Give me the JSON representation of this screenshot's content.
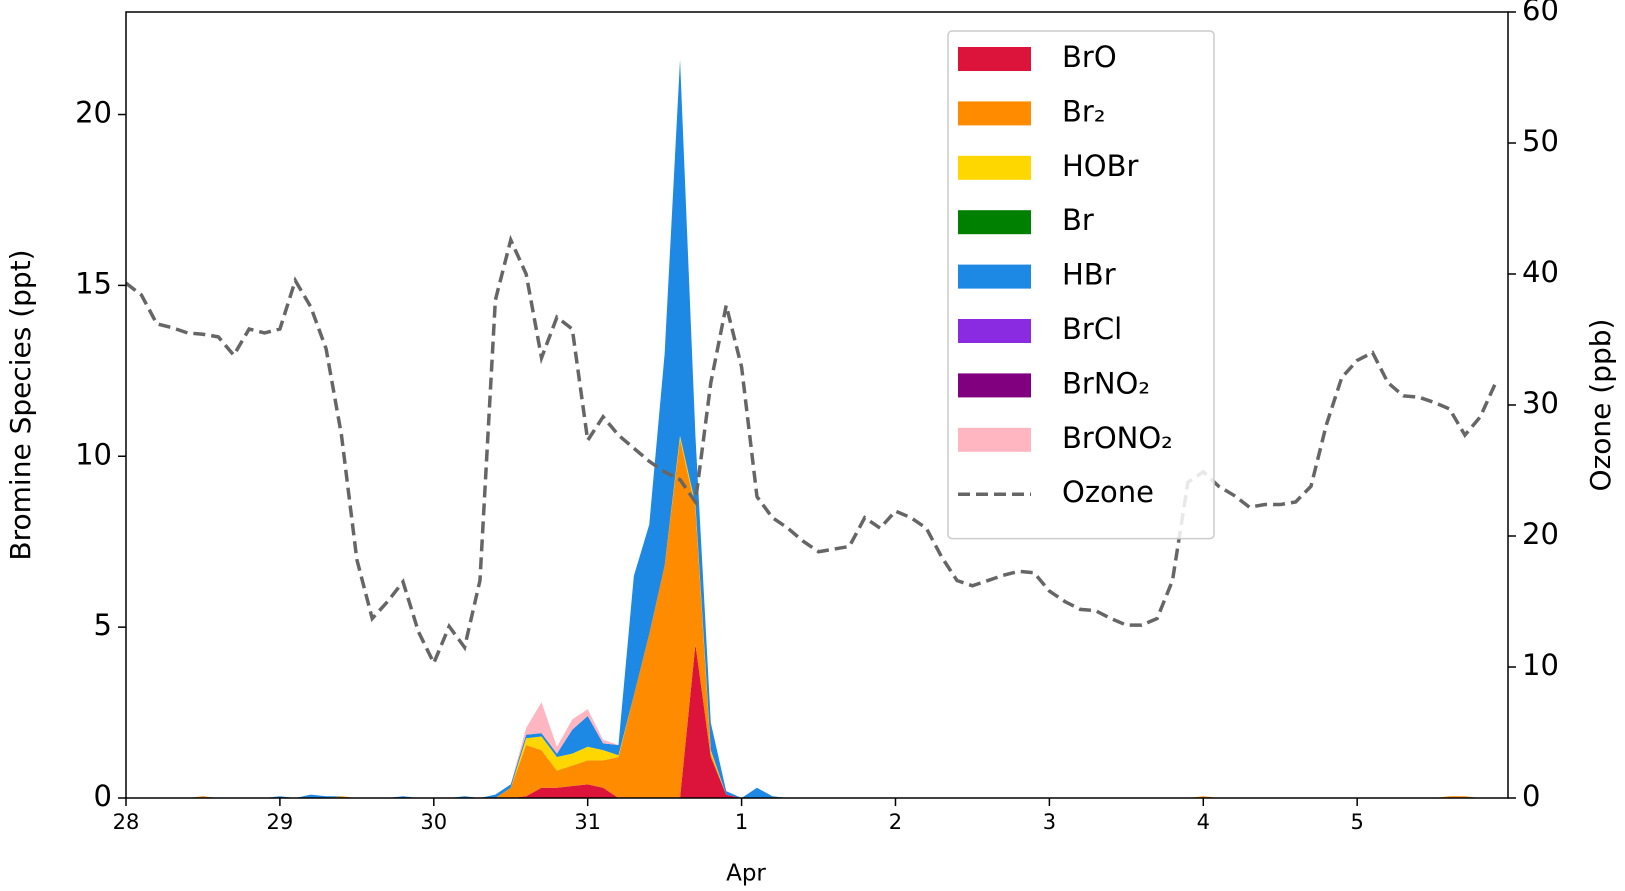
{
  "chart_data": {
    "type": "stackplot",
    "y_label": "Bromine Species (ppt)",
    "y2_label": "Ozone (ppb)",
    "x_label": "Apr",
    "x": [
      0,
      0.1,
      0.2,
      0.3,
      0.4,
      0.5,
      0.6,
      0.7,
      0.8,
      0.9,
      1,
      1.1,
      1.2,
      1.3,
      1.4,
      1.5,
      1.6,
      1.7,
      1.8,
      1.9,
      2,
      2.1,
      2.2,
      2.3,
      2.4,
      2.5,
      2.6,
      2.7,
      2.8,
      2.9,
      3,
      3.1,
      3.2,
      3.3,
      3.4,
      3.5,
      3.6,
      3.7,
      3.8,
      3.9,
      4,
      4.1,
      4.2,
      4.3,
      4.4,
      4.5,
      4.6,
      4.7,
      4.8,
      4.9,
      5,
      5.1,
      5.2,
      5.3,
      5.4,
      5.5,
      5.6,
      5.7,
      5.8,
      5.9,
      6,
      6.1,
      6.2,
      6.3,
      6.4,
      6.5,
      6.6,
      6.7,
      6.8,
      6.9,
      7,
      7.1,
      7.2,
      7.3,
      7.4,
      7.5,
      7.6,
      7.7,
      7.8,
      7.9,
      8,
      8.1,
      8.2,
      8.3,
      8.4,
      8.5,
      8.6,
      8.7,
      8.8,
      8.9
    ],
    "xlim": [
      0,
      8.98
    ],
    "xticks": [
      {
        "value": 0,
        "label": "28"
      },
      {
        "value": 1,
        "label": "29"
      },
      {
        "value": 2,
        "label": "30"
      },
      {
        "value": 3,
        "label": "31"
      },
      {
        "value": 4,
        "label": "1"
      },
      {
        "value": 5,
        "label": "2"
      },
      {
        "value": 6,
        "label": "3"
      },
      {
        "value": 7,
        "label": "4"
      },
      {
        "value": 8,
        "label": "5"
      }
    ],
    "ylim": [
      0,
      23
    ],
    "yticks": [
      0,
      5,
      10,
      15,
      20
    ],
    "y2lim": [
      0,
      60
    ],
    "y2ticks": [
      0,
      10,
      20,
      30,
      40,
      50,
      60
    ],
    "legend": "upper right",
    "series": [
      {
        "name": "BrO",
        "color": "#dc143c",
        "values": [
          0,
          0,
          0,
          0,
          0,
          0,
          0,
          0,
          0,
          0,
          0,
          0,
          0,
          0,
          0,
          0,
          0,
          0,
          0,
          0,
          0,
          0,
          0,
          0,
          0,
          0,
          0.05,
          0.3,
          0.3,
          0.35,
          0.4,
          0.3,
          0,
          0,
          0,
          0,
          0,
          4.5,
          1.2,
          0.1,
          0,
          0,
          0,
          0,
          0,
          0,
          0,
          0,
          0,
          0,
          0,
          0,
          0,
          0,
          0,
          0,
          0,
          0,
          0,
          0,
          0,
          0,
          0,
          0,
          0,
          0,
          0,
          0,
          0,
          0,
          0,
          0,
          0,
          0,
          0,
          0,
          0,
          0,
          0,
          0,
          0,
          0,
          0,
          0,
          0,
          0,
          0,
          0,
          0,
          0
        ]
      },
      {
        "name": "Br₂",
        "color": "#ff8c00",
        "values": [
          0,
          0,
          0,
          0,
          0,
          0.05,
          0,
          0,
          0,
          0,
          0,
          0,
          0,
          0,
          0.05,
          0,
          0,
          0,
          0,
          0,
          0,
          0,
          0,
          0,
          0,
          0.3,
          1.5,
          1.1,
          0.5,
          0.6,
          0.7,
          0.8,
          1.2,
          3,
          4.8,
          6.8,
          10.5,
          4,
          0.1,
          0,
          0,
          0,
          0,
          0,
          0,
          0,
          0,
          0,
          0,
          0,
          0,
          0,
          0,
          0,
          0,
          0,
          0,
          0,
          0,
          0,
          0,
          0,
          0,
          0,
          0,
          0,
          0,
          0,
          0,
          0,
          0.05,
          0,
          0,
          0,
          0,
          0,
          0,
          0,
          0,
          0,
          0,
          0,
          0,
          0,
          0,
          0,
          0.05,
          0.05,
          0,
          0
        ]
      },
      {
        "name": "HOBr",
        "color": "#ffd700",
        "values": [
          0,
          0,
          0,
          0,
          0,
          0,
          0,
          0,
          0,
          0,
          0,
          0,
          0,
          0,
          0,
          0,
          0,
          0,
          0,
          0,
          0,
          0,
          0,
          0,
          0,
          0,
          0.2,
          0.4,
          0.4,
          0.35,
          0.4,
          0.3,
          0.05,
          0,
          0,
          0,
          0.1,
          0.1,
          0.1,
          0,
          0,
          0,
          0,
          0,
          0,
          0,
          0,
          0,
          0,
          0,
          0,
          0,
          0,
          0,
          0,
          0,
          0,
          0,
          0,
          0,
          0,
          0,
          0,
          0,
          0,
          0,
          0,
          0,
          0,
          0,
          0,
          0,
          0,
          0,
          0,
          0,
          0,
          0,
          0,
          0,
          0,
          0,
          0,
          0,
          0,
          0,
          0,
          0,
          0,
          0
        ]
      },
      {
        "name": "Br",
        "color": "#008000",
        "values": [
          0,
          0,
          0,
          0,
          0,
          0,
          0,
          0,
          0,
          0,
          0,
          0,
          0,
          0,
          0,
          0,
          0,
          0,
          0,
          0,
          0,
          0,
          0,
          0,
          0,
          0,
          0,
          0,
          0,
          0,
          0,
          0,
          0,
          0,
          0,
          0,
          0,
          0,
          0,
          0,
          0,
          0,
          0,
          0,
          0,
          0,
          0,
          0,
          0,
          0,
          0,
          0,
          0,
          0,
          0,
          0,
          0,
          0,
          0,
          0,
          0,
          0,
          0,
          0,
          0,
          0,
          0,
          0,
          0,
          0,
          0,
          0,
          0,
          0,
          0,
          0,
          0,
          0,
          0,
          0,
          0,
          0,
          0,
          0,
          0,
          0,
          0,
          0,
          0,
          0
        ]
      },
      {
        "name": "HBr",
        "color": "#1e88e5",
        "values": [
          0,
          0,
          0,
          0,
          0,
          0,
          0,
          0,
          0,
          0,
          0.05,
          0,
          0.1,
          0.05,
          0,
          0,
          0,
          0,
          0.05,
          0,
          0,
          0,
          0.05,
          0,
          0.1,
          0.1,
          0.1,
          0.1,
          0.1,
          0.7,
          0.9,
          0.2,
          0.3,
          3.5,
          3.2,
          6.2,
          11,
          2,
          0.8,
          0.1,
          0,
          0.3,
          0.05,
          0,
          0,
          0,
          0,
          0,
          0,
          0,
          0,
          0,
          0,
          0,
          0,
          0,
          0,
          0,
          0,
          0,
          0,
          0,
          0,
          0,
          0,
          0,
          0,
          0,
          0,
          0,
          0,
          0,
          0,
          0,
          0,
          0,
          0,
          0,
          0,
          0,
          0,
          0,
          0,
          0,
          0,
          0,
          0,
          0,
          0,
          0
        ]
      },
      {
        "name": "BrCl",
        "color": "#8a2be2",
        "values": [
          0,
          0,
          0,
          0,
          0,
          0,
          0,
          0,
          0,
          0,
          0,
          0,
          0,
          0,
          0,
          0,
          0,
          0,
          0,
          0,
          0,
          0,
          0,
          0,
          0,
          0,
          0,
          0,
          0,
          0,
          0,
          0,
          0,
          0,
          0,
          0,
          0,
          0,
          0,
          0,
          0,
          0,
          0,
          0,
          0,
          0,
          0,
          0,
          0,
          0,
          0,
          0,
          0,
          0,
          0,
          0,
          0,
          0,
          0,
          0,
          0,
          0,
          0,
          0,
          0,
          0,
          0,
          0,
          0,
          0,
          0,
          0,
          0,
          0,
          0,
          0,
          0,
          0,
          0,
          0,
          0,
          0,
          0,
          0,
          0,
          0,
          0,
          0,
          0,
          0
        ]
      },
      {
        "name": "BrNO₂",
        "color": "#800080",
        "values": [
          0,
          0,
          0,
          0,
          0,
          0,
          0,
          0,
          0,
          0,
          0,
          0,
          0,
          0,
          0,
          0,
          0,
          0,
          0,
          0,
          0,
          0,
          0,
          0,
          0,
          0,
          0,
          0,
          0,
          0,
          0,
          0,
          0,
          0,
          0,
          0,
          0,
          0,
          0,
          0,
          0,
          0,
          0,
          0,
          0,
          0,
          0,
          0,
          0,
          0,
          0,
          0,
          0,
          0,
          0,
          0,
          0,
          0,
          0,
          0,
          0,
          0,
          0,
          0,
          0,
          0,
          0,
          0,
          0,
          0,
          0,
          0,
          0,
          0,
          0,
          0,
          0,
          0,
          0,
          0,
          0,
          0,
          0,
          0,
          0,
          0,
          0,
          0,
          0,
          0
        ]
      },
      {
        "name": "BrONO₂",
        "color": "#ffb6c1",
        "values": [
          0,
          0,
          0,
          0,
          0,
          0,
          0,
          0,
          0,
          0,
          0,
          0,
          0,
          0,
          0,
          0,
          0,
          0,
          0,
          0,
          0,
          0,
          0,
          0,
          0,
          0,
          0.2,
          0.9,
          0.2,
          0.3,
          0.2,
          0.1,
          0,
          0,
          0,
          0,
          0,
          0,
          0,
          0,
          0,
          0,
          0,
          0,
          0,
          0,
          0,
          0,
          0,
          0,
          0,
          0,
          0,
          0,
          0,
          0,
          0,
          0,
          0,
          0,
          0,
          0,
          0,
          0,
          0,
          0,
          0,
          0,
          0,
          0,
          0,
          0,
          0,
          0,
          0,
          0,
          0,
          0,
          0,
          0,
          0,
          0,
          0,
          0,
          0,
          0,
          0,
          0,
          0,
          0
        ]
      },
      {
        "name": "Ozone",
        "color": "#666666",
        "type": "line",
        "dash": true,
        "axis": "y2",
        "values": [
          39.3,
          38.4,
          36.2,
          35.9,
          35.5,
          35.4,
          35.2,
          33.8,
          35.8,
          35.5,
          35.8,
          39.5,
          37.5,
          34.3,
          27.7,
          18.2,
          13.7,
          15,
          16.5,
          12.7,
          10.3,
          13.1,
          11.5,
          16.6,
          38,
          42.6,
          40,
          33.6,
          36.7,
          35.8,
          27.3,
          29.1,
          27.7,
          26.7,
          25.7,
          24.9,
          24.3,
          22.6,
          31.7,
          37.6,
          32.9,
          23,
          21.4,
          20.6,
          19.6,
          18.8,
          19,
          19.2,
          21.4,
          20.6,
          21.9,
          21.4,
          20.6,
          18.4,
          16.6,
          16.2,
          16.6,
          17,
          17.3,
          17.2,
          15.8,
          15,
          14.4,
          14.3,
          13.7,
          13.2,
          13.2,
          13.7,
          16.6,
          24.1,
          24.9,
          23.8,
          23.1,
          22.2,
          22.4,
          22.4,
          22.6,
          23.8,
          28.5,
          32.1,
          33.4,
          34,
          31.7,
          30.7,
          30.6,
          30.2,
          29.7,
          27.7,
          29.1,
          31.7
        ]
      }
    ]
  }
}
